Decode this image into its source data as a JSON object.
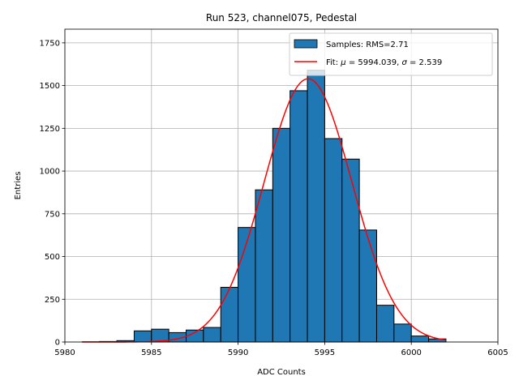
{
  "chart_data": {
    "type": "bar",
    "title": "Run 523, channel075, Pedestal",
    "xlabel": "ADC Counts",
    "ylabel": "Entries",
    "xlim": [
      5980,
      6005
    ],
    "ylim": [
      0,
      1830
    ],
    "xticks": [
      5980,
      5985,
      5990,
      5995,
      6000,
      6005
    ],
    "yticks": [
      0,
      250,
      500,
      750,
      1000,
      1250,
      1500,
      1750
    ],
    "ytick_labels": [
      "0",
      "250",
      "500",
      "750",
      "1000",
      "1250",
      "1500",
      "1750"
    ],
    "grid": true,
    "legend_position": "top-right",
    "histogram": {
      "name": "Samples: RMS=2.71",
      "color": "#1f77b4",
      "edgecolor": "#000000",
      "bin_width": 1,
      "bin_starts": [
        5981,
        5982,
        5983,
        5984,
        5985,
        5986,
        5987,
        5988,
        5989,
        5990,
        5991,
        5992,
        5993,
        5994,
        5995,
        5996,
        5997,
        5998,
        5999,
        6000,
        6001
      ],
      "values": [
        1,
        3,
        8,
        65,
        75,
        55,
        70,
        85,
        320,
        670,
        890,
        1250,
        1470,
        1590,
        1190,
        1070,
        655,
        215,
        105,
        35,
        18
      ]
    },
    "fit": {
      "label_prefix": "Fit: ",
      "label_mu": "μ",
      "label_mu_value": " = 5994.039, ",
      "label_sigma": "σ",
      "label_sigma_value": " = 2.539",
      "color": "#ff0000",
      "mu": 5994.039,
      "sigma": 2.539,
      "amplitude": 1540,
      "x_range": [
        5981,
        6002
      ]
    }
  }
}
